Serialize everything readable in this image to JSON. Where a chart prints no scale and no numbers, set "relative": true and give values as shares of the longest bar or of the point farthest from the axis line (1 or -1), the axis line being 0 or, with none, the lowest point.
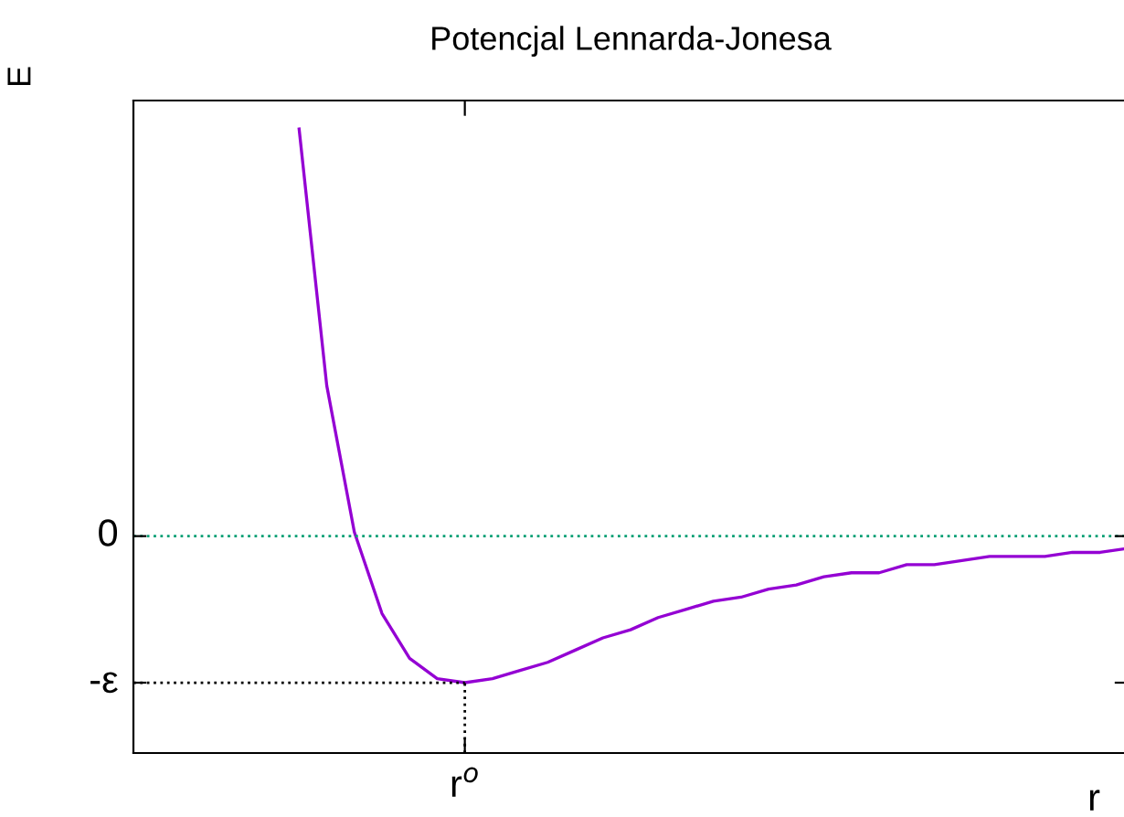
{
  "chart_data": {
    "type": "line",
    "title": "Potencjal Lennarda-Jonesa",
    "xlabel": "r",
    "ylabel": "E",
    "relative": true,
    "categories": [
      null,
      null,
      null,
      null,
      null,
      null,
      null,
      null,
      null,
      null,
      null,
      null,
      null,
      null,
      null,
      null,
      null,
      null,
      null,
      null,
      null,
      null,
      null,
      null,
      null,
      null,
      null,
      null,
      null,
      null,
      null,
      null,
      null,
      null,
      null,
      null,
      null
    ],
    "series": [
      {
        "color": "#9400d3",
        "values": [
          null,
          null,
          null,
          null,
          null,
          null,
          1.0,
          0.37,
          0.01,
          -0.19,
          -0.3,
          -0.35,
          -0.36,
          -0.35,
          -0.33,
          -0.31,
          -0.28,
          -0.25,
          -0.23,
          -0.2,
          -0.18,
          -0.16,
          -0.15,
          -0.13,
          -0.12,
          -0.1,
          -0.09,
          -0.09,
          -0.07,
          -0.07,
          -0.06,
          -0.05,
          -0.05,
          -0.05,
          -0.04,
          -0.04,
          -0.03
        ]
      }
    ],
    "annotations": [
      "r$^{o}$"
    ],
    "ref_lines": [
      {
        "axis": "y",
        "value": 0,
        "label": "0",
        "color": "#009e73",
        "line_style": "dotted"
      },
      {
        "axis": "y",
        "value": -0.36,
        "label": "-ε",
        "color": "#000000",
        "line_style": "dotted"
      }
    ],
    "legend": false,
    "marker": "none",
    "line_style": "solid"
  }
}
